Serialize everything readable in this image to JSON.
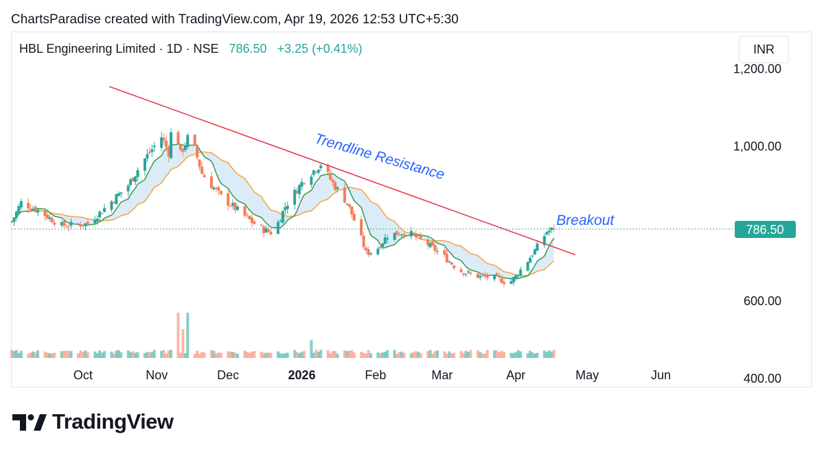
{
  "header": {
    "credit": "ChartsParadise created with TradingView.com, Apr 19, 2026 12:53 UTC+5:30"
  },
  "legend": {
    "symbol": "HBL Engineering Limited · 1D · NSE",
    "last": "786.50",
    "change": "+3.25 (+0.41%)"
  },
  "currency": "INR",
  "brand": "TradingView",
  "colors": {
    "up": "#26a69a",
    "down": "#f57c5b",
    "fast_ma": "#3f9c5a",
    "slow_ma": "#f5a64a",
    "cloud": "#cfe6f5",
    "trendline": "#e53950",
    "annotation": "#2962ff",
    "price_tag": "#26a69a"
  },
  "chart_data": {
    "type": "candlestick",
    "y_axis": {
      "ticks": [
        "1,200.00",
        "1,000.00",
        "600.00",
        "400.00"
      ],
      "tick_values": [
        1200,
        1000,
        600,
        400
      ],
      "range": [
        377,
        1297
      ]
    },
    "x_axis": {
      "labels": [
        {
          "text": "Oct",
          "date": "2025-10-01"
        },
        {
          "text": "Nov",
          "date": "2025-11-01"
        },
        {
          "text": "Dec",
          "date": "2025-12-01"
        },
        {
          "text": "2026",
          "date": "2026-01-01",
          "bold": true
        },
        {
          "text": "Feb",
          "date": "2026-02-01"
        },
        {
          "text": "Mar",
          "date": "2026-03-01"
        },
        {
          "text": "Apr",
          "date": "2026-04-01"
        },
        {
          "text": "May",
          "date": "2026-05-01"
        },
        {
          "text": "Jun",
          "date": "2026-06-01"
        }
      ],
      "range": [
        "2025-09-01",
        "2026-06-30"
      ]
    },
    "last_price": {
      "value": 786.5,
      "label": "786.50"
    },
    "price_waypoints": [
      {
        "date": "2025-09-01",
        "price": 805
      },
      {
        "date": "2025-09-05",
        "price": 855
      },
      {
        "date": "2025-09-12",
        "price": 835
      },
      {
        "date": "2025-09-22",
        "price": 795
      },
      {
        "date": "2025-10-03",
        "price": 800
      },
      {
        "date": "2025-10-10",
        "price": 840
      },
      {
        "date": "2025-10-20",
        "price": 900
      },
      {
        "date": "2025-10-26",
        "price": 960
      },
      {
        "date": "2025-11-03",
        "price": 1025
      },
      {
        "date": "2025-11-06",
        "price": 985
      },
      {
        "date": "2025-11-08",
        "price": 1080
      },
      {
        "date": "2025-11-11",
        "price": 980
      },
      {
        "date": "2025-11-15",
        "price": 1035
      },
      {
        "date": "2025-11-20",
        "price": 930
      },
      {
        "date": "2025-11-28",
        "price": 870
      },
      {
        "date": "2025-12-08",
        "price": 820
      },
      {
        "date": "2025-12-14",
        "price": 790
      },
      {
        "date": "2025-12-20",
        "price": 775
      },
      {
        "date": "2025-12-25",
        "price": 845
      },
      {
        "date": "2026-01-02",
        "price": 915
      },
      {
        "date": "2026-01-09",
        "price": 955
      },
      {
        "date": "2026-01-14",
        "price": 905
      },
      {
        "date": "2026-01-20",
        "price": 855
      },
      {
        "date": "2026-01-25",
        "price": 780
      },
      {
        "date": "2026-01-28",
        "price": 725
      },
      {
        "date": "2026-02-01",
        "price": 730
      },
      {
        "date": "2026-02-06",
        "price": 770
      },
      {
        "date": "2026-02-14",
        "price": 780
      },
      {
        "date": "2026-02-21",
        "price": 755
      },
      {
        "date": "2026-03-01",
        "price": 720
      },
      {
        "date": "2026-03-08",
        "price": 680
      },
      {
        "date": "2026-03-15",
        "price": 665
      },
      {
        "date": "2026-03-24",
        "price": 660
      },
      {
        "date": "2026-03-29",
        "price": 645
      },
      {
        "date": "2026-04-01",
        "price": 665
      },
      {
        "date": "2026-04-06",
        "price": 705
      },
      {
        "date": "2026-04-10",
        "price": 740
      },
      {
        "date": "2026-04-14",
        "price": 780
      },
      {
        "date": "2026-04-17",
        "price": 786.5
      }
    ],
    "moving_averages": [
      {
        "name": "fast",
        "period": 8
      },
      {
        "name": "slow",
        "period": 21
      }
    ],
    "volume_spikes": [
      {
        "date": "2025-11-08",
        "level": 1.0
      },
      {
        "date": "2025-11-10",
        "level": 0.55
      },
      {
        "date": "2025-11-14",
        "level": 0.55
      },
      {
        "date": "2025-11-12",
        "level": 0.35
      },
      {
        "date": "2026-01-24",
        "level": 0.48
      },
      {
        "date": "2025-12-20",
        "level": 0.38
      },
      {
        "date": "2025-10-26",
        "level": 0.25
      },
      {
        "date": "2026-01-05",
        "level": 0.22
      }
    ],
    "trendline": {
      "start": {
        "date": "2025-10-12",
        "price": 1155
      },
      "end": {
        "date": "2026-04-26",
        "price": 720
      }
    },
    "annotations": [
      {
        "text": "Trendline Resistance",
        "date": "2026-01-06",
        "price": 1010,
        "rotate_deg": 16
      },
      {
        "text": "Breakout",
        "date": "2026-04-18",
        "price": 797,
        "rotate_deg": 0
      }
    ]
  }
}
